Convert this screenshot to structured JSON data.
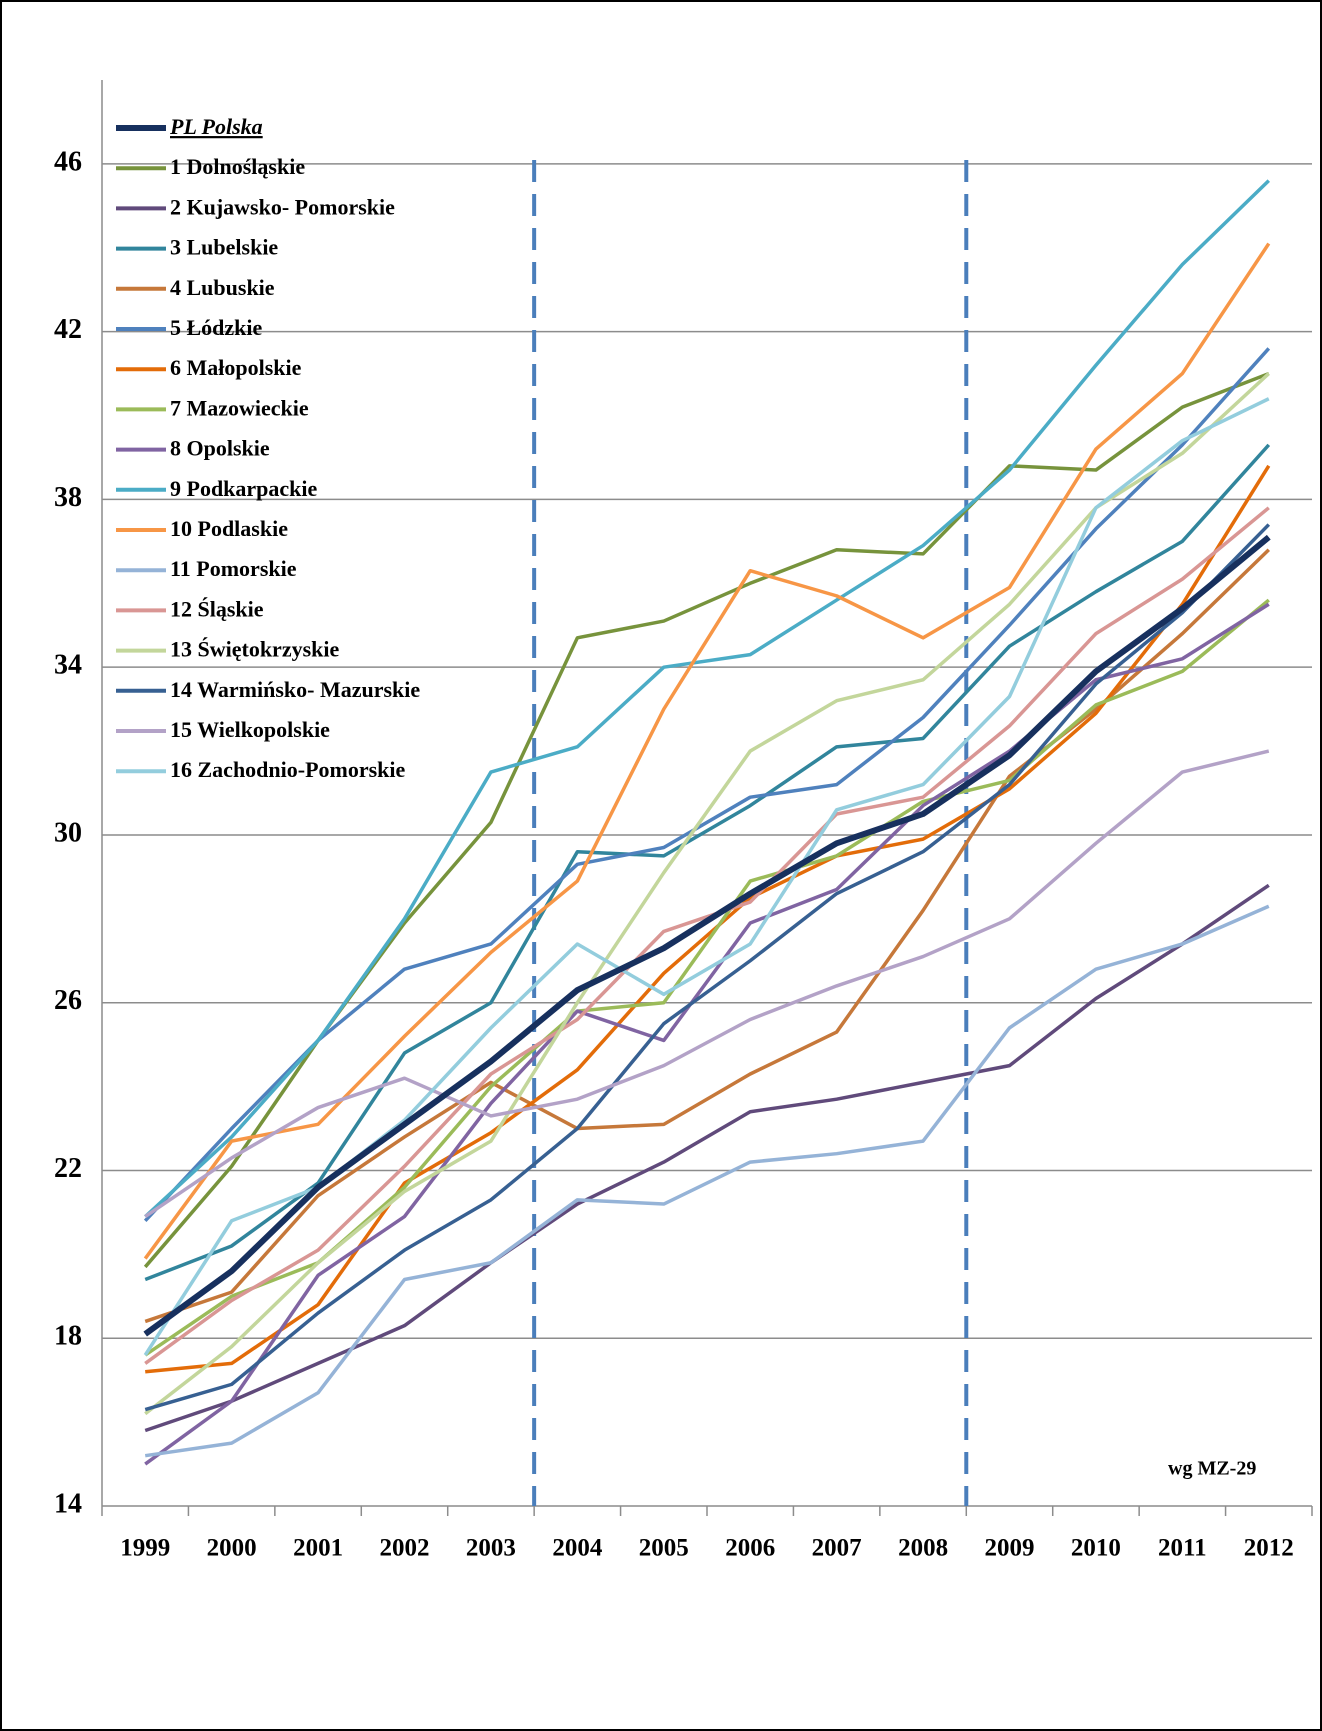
{
  "chart_data": {
    "type": "line",
    "categories": [
      "1999",
      "2000",
      "2001",
      "2002",
      "2003",
      "2004",
      "2005",
      "2006",
      "2007",
      "2008",
      "2009",
      "2010",
      "2011",
      "2012"
    ],
    "ylim": [
      14,
      48
    ],
    "yticks": [
      14,
      18,
      22,
      26,
      30,
      34,
      38,
      42,
      46
    ],
    "grid": true,
    "legend": "top-left",
    "annotation": "wg MZ-29",
    "series": [
      {
        "name": "PL Polska",
        "color": "#17305e",
        "values": [
          18.1,
          19.6,
          21.6,
          23.1,
          24.6,
          26.3,
          27.3,
          28.6,
          29.8,
          30.5,
          31.9,
          33.9,
          35.4,
          37.1
        ]
      },
      {
        "name": "1 Dolnośląskie",
        "color": "#77933c",
        "values": [
          19.7,
          22.1,
          25.1,
          27.9,
          30.3,
          34.7,
          35.1,
          36.0,
          36.8,
          36.7,
          38.8,
          38.7,
          40.2,
          41.0
        ]
      },
      {
        "name": "2 Kujawsko- Pomorskie",
        "color": "#604a7b",
        "values": [
          15.8,
          16.5,
          17.4,
          18.3,
          19.8,
          21.2,
          22.2,
          23.4,
          23.7,
          24.1,
          24.5,
          26.1,
          27.4,
          28.8
        ]
      },
      {
        "name": "3 Lubelskie",
        "color": "#31859c",
        "values": [
          19.4,
          20.2,
          21.7,
          24.8,
          26.0,
          29.6,
          29.5,
          30.7,
          32.1,
          32.3,
          34.5,
          35.8,
          37.0,
          39.3
        ]
      },
      {
        "name": "4 Lubuskie",
        "color": "#c6783a",
        "values": [
          18.4,
          19.1,
          21.4,
          22.8,
          24.1,
          23.0,
          23.1,
          24.3,
          25.3,
          28.2,
          31.4,
          33.0,
          34.8,
          36.8
        ]
      },
      {
        "name": "5 Łódzkie",
        "color": "#4f81bd",
        "values": [
          20.8,
          23.0,
          25.1,
          26.8,
          27.4,
          29.3,
          29.7,
          30.9,
          31.2,
          32.8,
          35.0,
          37.3,
          39.3,
          41.6
        ]
      },
      {
        "name": "6 Małopolskie",
        "color": "#e36c09",
        "values": [
          17.2,
          17.4,
          18.8,
          21.7,
          22.9,
          24.4,
          26.7,
          28.5,
          29.5,
          29.9,
          31.1,
          32.9,
          35.5,
          38.8
        ]
      },
      {
        "name": "7 Mazowieckie",
        "color": "#9bbb59",
        "values": [
          17.6,
          19.0,
          19.8,
          21.6,
          24.0,
          25.8,
          26.0,
          28.9,
          29.5,
          30.8,
          31.3,
          33.1,
          33.9,
          35.6
        ]
      },
      {
        "name": "8 Opolskie",
        "color": "#8064a2",
        "values": [
          15.0,
          16.5,
          19.5,
          20.9,
          23.6,
          25.8,
          25.1,
          27.9,
          28.7,
          30.7,
          32.0,
          33.7,
          34.2,
          35.5
        ]
      },
      {
        "name": "9 Podkarpackie",
        "color": "#4bacc6",
        "values": [
          20.9,
          22.8,
          25.1,
          28.0,
          31.5,
          32.1,
          34.0,
          34.3,
          35.6,
          36.9,
          38.7,
          41.2,
          43.6,
          45.6
        ]
      },
      {
        "name": "10 Podlaskie",
        "color": "#f79646",
        "values": [
          19.9,
          22.7,
          23.1,
          25.2,
          27.2,
          28.9,
          33.0,
          36.3,
          35.7,
          34.7,
          35.9,
          39.2,
          41.0,
          44.1
        ]
      },
      {
        "name": "11 Pomorskie",
        "color": "#95b3d7",
        "values": [
          15.2,
          15.5,
          16.7,
          19.4,
          19.8,
          21.3,
          21.2,
          22.2,
          22.4,
          22.7,
          25.4,
          26.8,
          27.4,
          28.3
        ]
      },
      {
        "name": "12 Śląskie",
        "color": "#d99694",
        "values": [
          17.4,
          18.9,
          20.1,
          22.1,
          24.3,
          25.6,
          27.7,
          28.4,
          30.5,
          30.9,
          32.6,
          34.8,
          36.1,
          37.8
        ]
      },
      {
        "name": "13 Świętokrzyskie",
        "color": "#c3d69b",
        "values": [
          16.2,
          17.8,
          19.8,
          21.5,
          22.7,
          26.0,
          29.1,
          32.0,
          33.2,
          33.7,
          35.5,
          37.8,
          39.1,
          41.0
        ]
      },
      {
        "name": "14 Warmińsko- Mazurskie",
        "color": "#376092",
        "values": [
          16.3,
          16.9,
          18.6,
          20.1,
          21.3,
          23.0,
          25.5,
          27.0,
          28.6,
          29.6,
          31.2,
          33.6,
          35.3,
          37.4
        ]
      },
      {
        "name": "15 Wielkopolskie",
        "color": "#b3a2c7",
        "values": [
          20.9,
          22.3,
          23.5,
          24.2,
          23.3,
          23.7,
          24.5,
          25.6,
          26.4,
          27.1,
          28.0,
          29.8,
          31.5,
          32.0
        ]
      },
      {
        "name": "16 Zachodnio-Pomorskie",
        "color": "#93cddd",
        "values": [
          17.6,
          20.8,
          21.6,
          23.2,
          25.4,
          27.4,
          26.2,
          27.4,
          30.6,
          31.2,
          33.3,
          37.8,
          39.4,
          40.4
        ]
      }
    ]
  }
}
